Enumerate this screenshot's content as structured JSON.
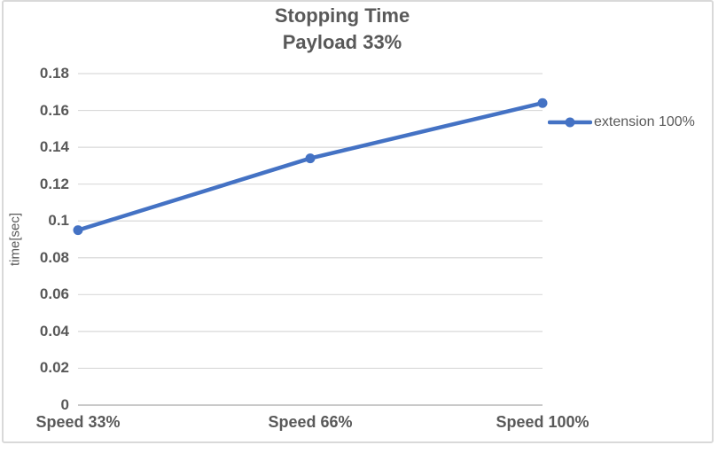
{
  "chart_data": {
    "type": "line",
    "title": "Stopping Time",
    "subtitle": "Payload 33%",
    "categories": [
      "Speed 33%",
      "Speed 66%",
      "Speed 100%"
    ],
    "series": [
      {
        "name": "extension 100%",
        "values": [
          0.095,
          0.134,
          0.164
        ]
      }
    ],
    "xlabel": "",
    "ylabel": "time[sec]",
    "ylim": [
      0,
      0.18
    ],
    "ytick_step": 0.02,
    "ytick_labels": [
      "0",
      "0.02",
      "0.04",
      "0.06",
      "0.08",
      "0.1",
      "0.12",
      "0.14",
      "0.16",
      "0.18"
    ],
    "grid": true,
    "legend_position": "right",
    "colors": {
      "series": "#4472C4",
      "gridline": "#D9D9D9",
      "axis_line": "#C9C9C9",
      "text": "#595959",
      "border": "#D9D9D9",
      "background": "#FFFFFF"
    }
  }
}
